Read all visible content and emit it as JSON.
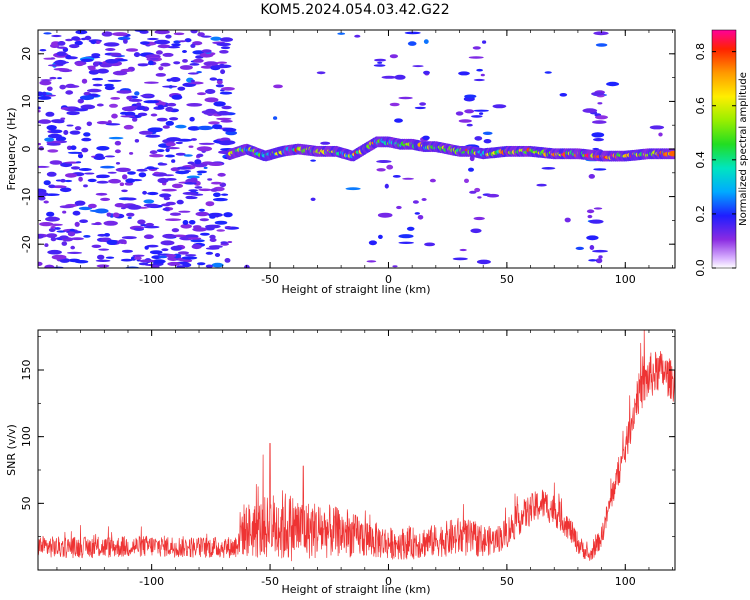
{
  "title": "KOM5.2024.054.03.42.G22",
  "chart_data": [
    {
      "type": "heatmap",
      "xlabel": "Height of straight line (km)",
      "ylabel": "Frequency (Hz)",
      "xlim": [
        -148,
        121
      ],
      "ylim": [
        -25,
        25
      ],
      "xticks": [
        -100,
        -50,
        0,
        50,
        100
      ],
      "yticks": [
        -20,
        -10,
        0,
        10,
        20
      ],
      "colorbar": {
        "label": "Normalized spectral amplitude",
        "range": [
          0,
          0.88
        ],
        "ticks": [
          0.0,
          0.2,
          0.4,
          0.6,
          0.8
        ],
        "colormap": "rainbow"
      },
      "ridge": {
        "x_start": -67,
        "x_end": 121,
        "frequency_track": [
          {
            "x": -66,
            "f": -1.0
          },
          {
            "x": -60,
            "f": 0.0
          },
          {
            "x": -52,
            "f": -1.5
          },
          {
            "x": -45,
            "f": -0.5
          },
          {
            "x": -38,
            "f": 0.0
          },
          {
            "x": -30,
            "f": -0.5
          },
          {
            "x": -22,
            "f": -0.5
          },
          {
            "x": -15,
            "f": -1.5
          },
          {
            "x": -10,
            "f": 0.0
          },
          {
            "x": -5,
            "f": 1.5
          },
          {
            "x": 0,
            "f": 1.5
          },
          {
            "x": 5,
            "f": 1.0
          },
          {
            "x": 10,
            "f": 1.0
          },
          {
            "x": 15,
            "f": 0.5
          },
          {
            "x": 20,
            "f": 0.5
          },
          {
            "x": 25,
            "f": 0.0
          },
          {
            "x": 30,
            "f": -0.5
          },
          {
            "x": 35,
            "f": -0.5
          },
          {
            "x": 40,
            "f": -1.0
          },
          {
            "x": 50,
            "f": -0.5
          },
          {
            "x": 60,
            "f": -0.5
          },
          {
            "x": 70,
            "f": -1.0
          },
          {
            "x": 80,
            "f": -1.0
          },
          {
            "x": 90,
            "f": -1.5
          },
          {
            "x": 100,
            "f": -1.5
          },
          {
            "x": 110,
            "f": -1.0
          },
          {
            "x": 121,
            "f": -1.0
          }
        ],
        "peak_amplitude": 0.88
      },
      "noise": {
        "dense_region_x": [
          -148,
          -66
        ],
        "sparse_bands_x": [
          [
            -5,
            20
          ],
          [
            30,
            42
          ],
          [
            85,
            90
          ]
        ],
        "typical_amplitude": [
          0.1,
          0.2
        ]
      }
    },
    {
      "type": "line",
      "xlabel": "Height of straight line (km)",
      "ylabel": "SNR (v/v)",
      "xlim": [
        -148,
        121
      ],
      "ylim": [
        0,
        180
      ],
      "xticks": [
        -100,
        -50,
        0,
        50,
        100
      ],
      "yticks": [
        50,
        100,
        150
      ],
      "color": "#ee3333",
      "envelope": [
        {
          "x": -148,
          "mean": 18,
          "noise": 8
        },
        {
          "x": -140,
          "mean": 17,
          "noise": 8
        },
        {
          "x": -120,
          "mean": 17,
          "noise": 8
        },
        {
          "x": -100,
          "mean": 18,
          "noise": 8
        },
        {
          "x": -80,
          "mean": 17,
          "noise": 8
        },
        {
          "x": -65,
          "mean": 17,
          "noise": 8
        },
        {
          "x": -62,
          "mean": 30,
          "noise": 20
        },
        {
          "x": -55,
          "mean": 30,
          "noise": 22
        },
        {
          "x": -50,
          "mean": 32,
          "noise": 25
        },
        {
          "x": -45,
          "mean": 33,
          "noise": 28
        },
        {
          "x": -40,
          "mean": 32,
          "noise": 25
        },
        {
          "x": -35,
          "mean": 30,
          "noise": 22
        },
        {
          "x": -30,
          "mean": 30,
          "noise": 22
        },
        {
          "x": -20,
          "mean": 28,
          "noise": 18
        },
        {
          "x": -10,
          "mean": 24,
          "noise": 15
        },
        {
          "x": 0,
          "mean": 20,
          "noise": 12
        },
        {
          "x": 10,
          "mean": 20,
          "noise": 12
        },
        {
          "x": 20,
          "mean": 22,
          "noise": 12
        },
        {
          "x": 30,
          "mean": 25,
          "noise": 15
        },
        {
          "x": 40,
          "mean": 22,
          "noise": 12
        },
        {
          "x": 45,
          "mean": 22,
          "noise": 10
        },
        {
          "x": 50,
          "mean": 28,
          "noise": 12
        },
        {
          "x": 55,
          "mean": 38,
          "noise": 12
        },
        {
          "x": 60,
          "mean": 45,
          "noise": 12
        },
        {
          "x": 65,
          "mean": 50,
          "noise": 12
        },
        {
          "x": 70,
          "mean": 45,
          "noise": 12
        },
        {
          "x": 75,
          "mean": 35,
          "noise": 10
        },
        {
          "x": 80,
          "mean": 20,
          "noise": 8
        },
        {
          "x": 85,
          "mean": 10,
          "noise": 5
        },
        {
          "x": 90,
          "mean": 25,
          "noise": 8
        },
        {
          "x": 95,
          "mean": 60,
          "noise": 10
        },
        {
          "x": 100,
          "mean": 90,
          "noise": 12
        },
        {
          "x": 105,
          "mean": 130,
          "noise": 15
        },
        {
          "x": 110,
          "mean": 145,
          "noise": 18
        },
        {
          "x": 115,
          "mean": 150,
          "noise": 15
        },
        {
          "x": 121,
          "mean": 140,
          "noise": 15
        }
      ],
      "notable_peaks": [
        {
          "x": -50,
          "value": 95
        },
        {
          "x": -36,
          "value": 78
        },
        {
          "x": 108,
          "value": 182
        }
      ]
    }
  ]
}
